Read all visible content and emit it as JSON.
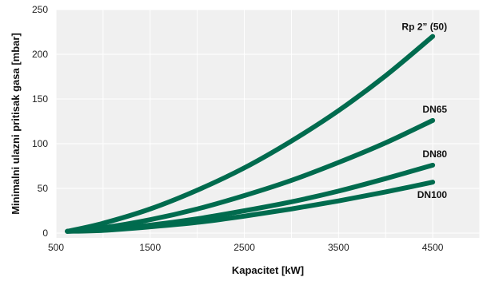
{
  "chart_data": {
    "type": "line",
    "xlabel": "Kapacitet [kW]",
    "ylabel": "Minimalni ulazni pritisak gasa [mbar]",
    "xlim": [
      500,
      5000
    ],
    "ylim": [
      0,
      250
    ],
    "x_ticks": [
      "500",
      "1500",
      "2500",
      "3500",
      "4500"
    ],
    "x_tick_values": [
      500,
      1500,
      2500,
      3500,
      4500
    ],
    "y_ticks": [
      "0",
      "50",
      "100",
      "150",
      "200",
      "250"
    ],
    "y_tick_values": [
      0,
      50,
      100,
      150,
      200,
      250
    ],
    "x_grid_values": [
      500,
      1000,
      1500,
      2000,
      2500,
      3000,
      3500,
      4000,
      4500,
      5000
    ],
    "grid": true,
    "plot_background": "#f0f0f0",
    "line_color": "#006b4e",
    "series": [
      {
        "name": "Rp 2” (50)",
        "x": [
          620,
          1000,
          1500,
          2000,
          2500,
          3000,
          3500,
          4000,
          4500
        ],
        "y": [
          2,
          11,
          27,
          48,
          73,
          103,
          137,
          176,
          220
        ]
      },
      {
        "name": "DN65",
        "x": [
          620,
          1000,
          1500,
          2000,
          2500,
          3000,
          3500,
          4000,
          4500
        ],
        "y": [
          2,
          6,
          15,
          27,
          42,
          59,
          79,
          101,
          126
        ]
      },
      {
        "name": "DN80",
        "x": [
          620,
          1000,
          1500,
          2000,
          2500,
          3000,
          3500,
          4000,
          4500
        ],
        "y": [
          2,
          4,
          9,
          16,
          25,
          35,
          47,
          61,
          76
        ]
      },
      {
        "name": "DN100",
        "x": [
          620,
          1000,
          1500,
          2000,
          2500,
          3000,
          3500,
          4000,
          4500
        ],
        "y": [
          2,
          3,
          7,
          12,
          19,
          27,
          36,
          46,
          57
        ]
      }
    ]
  }
}
